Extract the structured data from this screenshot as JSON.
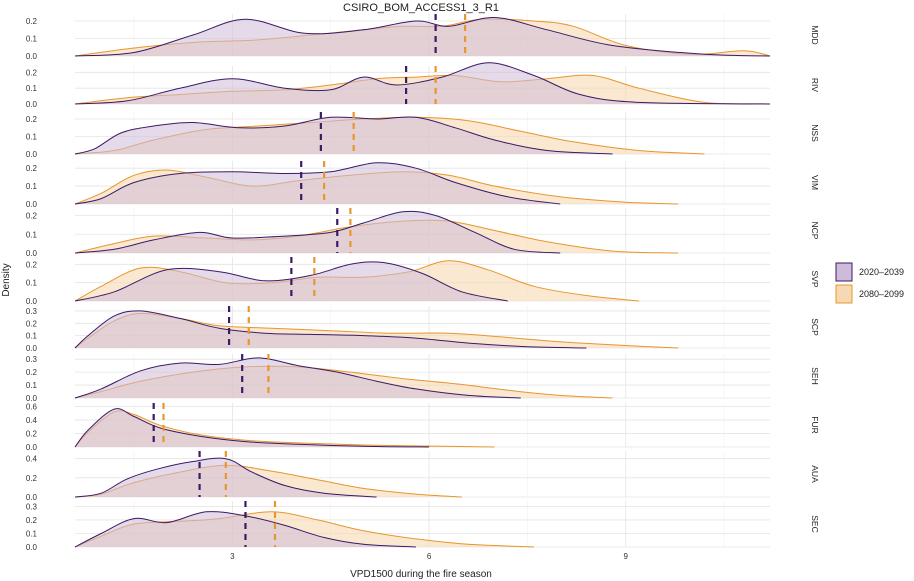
{
  "chart_data": {
    "type": "area",
    "subtype": "ridgeline-density-facets",
    "title": "CSIRO_BOM_ACCESS1_3_R1",
    "xlabel": "VPD1500 during the fire season",
    "ylabel": "Density",
    "xlim": [
      0.6,
      11.2
    ],
    "x_ticks": [
      3,
      6,
      9
    ],
    "legend": {
      "position": "right",
      "entries": [
        "2020–2039",
        "2080–2099"
      ]
    },
    "colors": {
      "p1_line": "#3b1a66",
      "p1_fill": "#cdbbd9",
      "p2_line": "#e8962e",
      "p2_fill": "#f6d9b2"
    },
    "series": [
      "2020–2039",
      "2080–2099"
    ],
    "panels": [
      {
        "label": "MDD",
        "ymax": 0.24,
        "yticks": [
          0.0,
          0.1,
          0.2
        ],
        "mean": [
          6.1,
          6.55
        ],
        "s1": [
          [
            0.6,
            0.0
          ],
          [
            1.5,
            0.02
          ],
          [
            2.4,
            0.12
          ],
          [
            3.2,
            0.21
          ],
          [
            4.1,
            0.13
          ],
          [
            5.0,
            0.15
          ],
          [
            5.8,
            0.2
          ],
          [
            6.3,
            0.17
          ],
          [
            7.0,
            0.22
          ],
          [
            7.8,
            0.15
          ],
          [
            8.8,
            0.06
          ],
          [
            10.2,
            0.01
          ],
          [
            11.2,
            0.0
          ]
        ],
        "s2": [
          [
            0.6,
            0.0
          ],
          [
            1.6,
            0.05
          ],
          [
            2.5,
            0.08
          ],
          [
            3.3,
            0.09
          ],
          [
            4.2,
            0.12
          ],
          [
            5.0,
            0.15
          ],
          [
            5.6,
            0.17
          ],
          [
            6.2,
            0.17
          ],
          [
            6.8,
            0.21
          ],
          [
            7.6,
            0.2
          ],
          [
            8.2,
            0.17
          ],
          [
            9.0,
            0.06
          ],
          [
            10.0,
            0.01
          ],
          [
            10.8,
            0.03
          ],
          [
            11.2,
            0.0
          ]
        ]
      },
      {
        "label": "RIV",
        "ymax": 0.24,
        "yticks": [
          0.0,
          0.1,
          0.2
        ],
        "mean": [
          5.65,
          6.1
        ],
        "s1": [
          [
            0.6,
            0.0
          ],
          [
            1.4,
            0.02
          ],
          [
            2.2,
            0.1
          ],
          [
            3.0,
            0.16
          ],
          [
            3.8,
            0.1
          ],
          [
            4.5,
            0.09
          ],
          [
            5.0,
            0.17
          ],
          [
            5.5,
            0.12
          ],
          [
            6.2,
            0.17
          ],
          [
            6.9,
            0.26
          ],
          [
            7.6,
            0.18
          ],
          [
            8.3,
            0.06
          ],
          [
            9.2,
            0.01
          ],
          [
            11.2,
            0.0
          ]
        ],
        "s2": [
          [
            0.6,
            0.0
          ],
          [
            1.4,
            0.04
          ],
          [
            2.2,
            0.06
          ],
          [
            3.0,
            0.08
          ],
          [
            3.8,
            0.09
          ],
          [
            4.5,
            0.12
          ],
          [
            5.2,
            0.16
          ],
          [
            5.8,
            0.17
          ],
          [
            6.4,
            0.18
          ],
          [
            7.1,
            0.14
          ],
          [
            7.8,
            0.16
          ],
          [
            8.5,
            0.18
          ],
          [
            9.2,
            0.1
          ],
          [
            10.2,
            0.01
          ],
          [
            11.2,
            0.0
          ]
        ]
      },
      {
        "label": "NSS",
        "ymax": 0.24,
        "yticks": [
          0.0,
          0.1,
          0.2
        ],
        "mean": [
          4.35,
          4.85
        ],
        "s1": [
          [
            0.6,
            0.0
          ],
          [
            0.9,
            0.03
          ],
          [
            1.3,
            0.12
          ],
          [
            1.8,
            0.16
          ],
          [
            2.4,
            0.18
          ],
          [
            3.1,
            0.15
          ],
          [
            3.8,
            0.16
          ],
          [
            4.5,
            0.21
          ],
          [
            5.2,
            0.2
          ],
          [
            5.8,
            0.21
          ],
          [
            6.4,
            0.15
          ],
          [
            7.0,
            0.08
          ],
          [
            7.8,
            0.02
          ],
          [
            8.8,
            0.0
          ]
        ],
        "s2": [
          [
            0.6,
            0.0
          ],
          [
            1.2,
            0.02
          ],
          [
            1.8,
            0.08
          ],
          [
            2.6,
            0.14
          ],
          [
            3.4,
            0.16
          ],
          [
            4.2,
            0.18
          ],
          [
            5.0,
            0.2
          ],
          [
            5.8,
            0.21
          ],
          [
            6.6,
            0.19
          ],
          [
            7.4,
            0.13
          ],
          [
            8.2,
            0.07
          ],
          [
            9.2,
            0.02
          ],
          [
            10.2,
            0.0
          ]
        ]
      },
      {
        "label": "VIM",
        "ymax": 0.24,
        "yticks": [
          0.0,
          0.1,
          0.2
        ],
        "mean": [
          4.05,
          4.4
        ],
        "s1": [
          [
            0.6,
            0.0
          ],
          [
            1.0,
            0.03
          ],
          [
            1.5,
            0.12
          ],
          [
            2.2,
            0.17
          ],
          [
            3.0,
            0.18
          ],
          [
            3.8,
            0.17
          ],
          [
            4.5,
            0.18
          ],
          [
            5.2,
            0.23
          ],
          [
            5.8,
            0.2
          ],
          [
            6.4,
            0.12
          ],
          [
            7.2,
            0.04
          ],
          [
            8.0,
            0.0
          ]
        ],
        "s2": [
          [
            0.6,
            0.0
          ],
          [
            1.0,
            0.06
          ],
          [
            1.5,
            0.16
          ],
          [
            2.0,
            0.19
          ],
          [
            2.6,
            0.15
          ],
          [
            3.3,
            0.1
          ],
          [
            4.0,
            0.13
          ],
          [
            4.8,
            0.16
          ],
          [
            5.6,
            0.18
          ],
          [
            6.3,
            0.16
          ],
          [
            7.0,
            0.1
          ],
          [
            8.0,
            0.04
          ],
          [
            9.0,
            0.01
          ],
          [
            9.8,
            0.0
          ]
        ]
      },
      {
        "label": "NCP",
        "ymax": 0.24,
        "yticks": [
          0.0,
          0.1,
          0.2
        ],
        "mean": [
          4.6,
          4.8
        ],
        "s1": [
          [
            0.6,
            0.0
          ],
          [
            1.2,
            0.02
          ],
          [
            1.8,
            0.07
          ],
          [
            2.5,
            0.11
          ],
          [
            3.0,
            0.08
          ],
          [
            3.8,
            0.09
          ],
          [
            4.5,
            0.11
          ],
          [
            5.0,
            0.16
          ],
          [
            5.6,
            0.22
          ],
          [
            6.1,
            0.2
          ],
          [
            6.7,
            0.11
          ],
          [
            7.3,
            0.02
          ],
          [
            8.0,
            0.0
          ]
        ],
        "s2": [
          [
            0.6,
            0.0
          ],
          [
            1.2,
            0.05
          ],
          [
            1.8,
            0.09
          ],
          [
            2.6,
            0.08
          ],
          [
            3.3,
            0.07
          ],
          [
            4.0,
            0.09
          ],
          [
            4.8,
            0.14
          ],
          [
            5.6,
            0.17
          ],
          [
            6.3,
            0.17
          ],
          [
            7.0,
            0.12
          ],
          [
            7.8,
            0.06
          ],
          [
            8.8,
            0.01
          ],
          [
            9.8,
            0.0
          ]
        ]
      },
      {
        "label": "SVP",
        "ymax": 0.24,
        "yticks": [
          0.0,
          0.1,
          0.2
        ],
        "mean": [
          3.9,
          4.25
        ],
        "s1": [
          [
            0.6,
            0.0
          ],
          [
            1.2,
            0.05
          ],
          [
            2.0,
            0.17
          ],
          [
            2.8,
            0.16
          ],
          [
            3.5,
            0.11
          ],
          [
            4.2,
            0.14
          ],
          [
            4.8,
            0.2
          ],
          [
            5.3,
            0.21
          ],
          [
            5.9,
            0.15
          ],
          [
            6.5,
            0.05
          ],
          [
            7.2,
            0.0
          ]
        ],
        "s2": [
          [
            0.6,
            0.0
          ],
          [
            1.0,
            0.08
          ],
          [
            1.6,
            0.18
          ],
          [
            2.2,
            0.16
          ],
          [
            2.9,
            0.1
          ],
          [
            3.6,
            0.1
          ],
          [
            4.3,
            0.13
          ],
          [
            5.0,
            0.13
          ],
          [
            5.7,
            0.16
          ],
          [
            6.3,
            0.22
          ],
          [
            6.9,
            0.17
          ],
          [
            7.6,
            0.08
          ],
          [
            8.4,
            0.03
          ],
          [
            9.2,
            0.0
          ]
        ]
      },
      {
        "label": "SCP",
        "ymax": 0.34,
        "yticks": [
          0.0,
          0.1,
          0.2,
          0.3
        ],
        "mean": [
          2.95,
          3.25
        ],
        "s1": [
          [
            0.6,
            0.0
          ],
          [
            0.8,
            0.1
          ],
          [
            1.2,
            0.26
          ],
          [
            1.6,
            0.3
          ],
          [
            2.2,
            0.24
          ],
          [
            2.8,
            0.16
          ],
          [
            3.5,
            0.12
          ],
          [
            4.2,
            0.11
          ],
          [
            5.0,
            0.1
          ],
          [
            5.8,
            0.08
          ],
          [
            6.6,
            0.04
          ],
          [
            7.5,
            0.01
          ],
          [
            8.4,
            0.0
          ]
        ],
        "s2": [
          [
            0.6,
            0.0
          ],
          [
            0.8,
            0.08
          ],
          [
            1.2,
            0.22
          ],
          [
            1.6,
            0.28
          ],
          [
            2.2,
            0.24
          ],
          [
            2.8,
            0.18
          ],
          [
            3.6,
            0.16
          ],
          [
            4.5,
            0.14
          ],
          [
            5.4,
            0.12
          ],
          [
            6.3,
            0.12
          ],
          [
            7.1,
            0.09
          ],
          [
            8.0,
            0.05
          ],
          [
            9.0,
            0.02
          ],
          [
            9.8,
            0.0
          ]
        ]
      },
      {
        "label": "SEH",
        "ymax": 0.34,
        "yticks": [
          0.0,
          0.1,
          0.2,
          0.3
        ],
        "mean": [
          3.15,
          3.55
        ],
        "s1": [
          [
            0.6,
            0.0
          ],
          [
            1.0,
            0.07
          ],
          [
            1.6,
            0.21
          ],
          [
            2.2,
            0.27
          ],
          [
            2.8,
            0.26
          ],
          [
            3.4,
            0.31
          ],
          [
            4.0,
            0.25
          ],
          [
            4.6,
            0.2
          ],
          [
            5.2,
            0.13
          ],
          [
            5.8,
            0.07
          ],
          [
            6.6,
            0.02
          ],
          [
            7.4,
            0.0
          ]
        ],
        "s2": [
          [
            0.6,
            0.0
          ],
          [
            1.0,
            0.05
          ],
          [
            1.6,
            0.13
          ],
          [
            2.4,
            0.2
          ],
          [
            3.2,
            0.24
          ],
          [
            4.0,
            0.24
          ],
          [
            4.8,
            0.2
          ],
          [
            5.6,
            0.15
          ],
          [
            6.4,
            0.11
          ],
          [
            7.2,
            0.06
          ],
          [
            8.0,
            0.02
          ],
          [
            8.8,
            0.0
          ]
        ]
      },
      {
        "label": "FUR",
        "ymax": 0.65,
        "yticks": [
          0.0,
          0.2,
          0.4,
          0.6
        ],
        "mean": [
          1.8,
          1.95
        ],
        "s1": [
          [
            0.6,
            0.0
          ],
          [
            0.8,
            0.25
          ],
          [
            1.2,
            0.56
          ],
          [
            1.5,
            0.45
          ],
          [
            1.9,
            0.28
          ],
          [
            2.5,
            0.16
          ],
          [
            3.2,
            0.08
          ],
          [
            4.0,
            0.04
          ],
          [
            5.0,
            0.01
          ],
          [
            6.0,
            0.0
          ]
        ],
        "s2": [
          [
            0.6,
            0.0
          ],
          [
            0.8,
            0.22
          ],
          [
            1.2,
            0.52
          ],
          [
            1.5,
            0.48
          ],
          [
            1.9,
            0.32
          ],
          [
            2.5,
            0.18
          ],
          [
            3.2,
            0.1
          ],
          [
            4.0,
            0.06
          ],
          [
            5.0,
            0.03
          ],
          [
            6.2,
            0.01
          ],
          [
            7.0,
            0.0
          ]
        ]
      },
      {
        "label": "AUA",
        "ymax": 0.48,
        "yticks": [
          0.0,
          0.2,
          0.4
        ],
        "mean": [
          2.5,
          2.9
        ],
        "s1": [
          [
            0.6,
            0.0
          ],
          [
            1.0,
            0.04
          ],
          [
            1.4,
            0.19
          ],
          [
            1.9,
            0.3
          ],
          [
            2.4,
            0.37
          ],
          [
            2.9,
            0.4
          ],
          [
            3.3,
            0.26
          ],
          [
            3.8,
            0.12
          ],
          [
            4.4,
            0.04
          ],
          [
            5.2,
            0.0
          ]
        ],
        "s2": [
          [
            0.6,
            0.0
          ],
          [
            1.0,
            0.03
          ],
          [
            1.5,
            0.15
          ],
          [
            2.2,
            0.26
          ],
          [
            2.9,
            0.33
          ],
          [
            3.6,
            0.27
          ],
          [
            4.3,
            0.18
          ],
          [
            5.0,
            0.09
          ],
          [
            5.8,
            0.03
          ],
          [
            6.5,
            0.0
          ]
        ]
      },
      {
        "label": "SEC",
        "ymax": 0.34,
        "yticks": [
          0.0,
          0.1,
          0.2,
          0.3
        ],
        "mean": [
          3.2,
          3.65
        ],
        "s1": [
          [
            0.6,
            0.0
          ],
          [
            1.0,
            0.1
          ],
          [
            1.5,
            0.21
          ],
          [
            2.0,
            0.18
          ],
          [
            2.6,
            0.26
          ],
          [
            3.2,
            0.23
          ],
          [
            3.8,
            0.16
          ],
          [
            4.4,
            0.07
          ],
          [
            5.0,
            0.02
          ],
          [
            5.8,
            0.0
          ]
        ],
        "s2": [
          [
            0.6,
            0.0
          ],
          [
            1.0,
            0.08
          ],
          [
            1.5,
            0.17
          ],
          [
            2.2,
            0.19
          ],
          [
            2.8,
            0.21
          ],
          [
            3.6,
            0.26
          ],
          [
            4.3,
            0.2
          ],
          [
            5.0,
            0.12
          ],
          [
            5.8,
            0.06
          ],
          [
            6.6,
            0.02
          ],
          [
            7.6,
            0.0
          ]
        ]
      }
    ]
  }
}
